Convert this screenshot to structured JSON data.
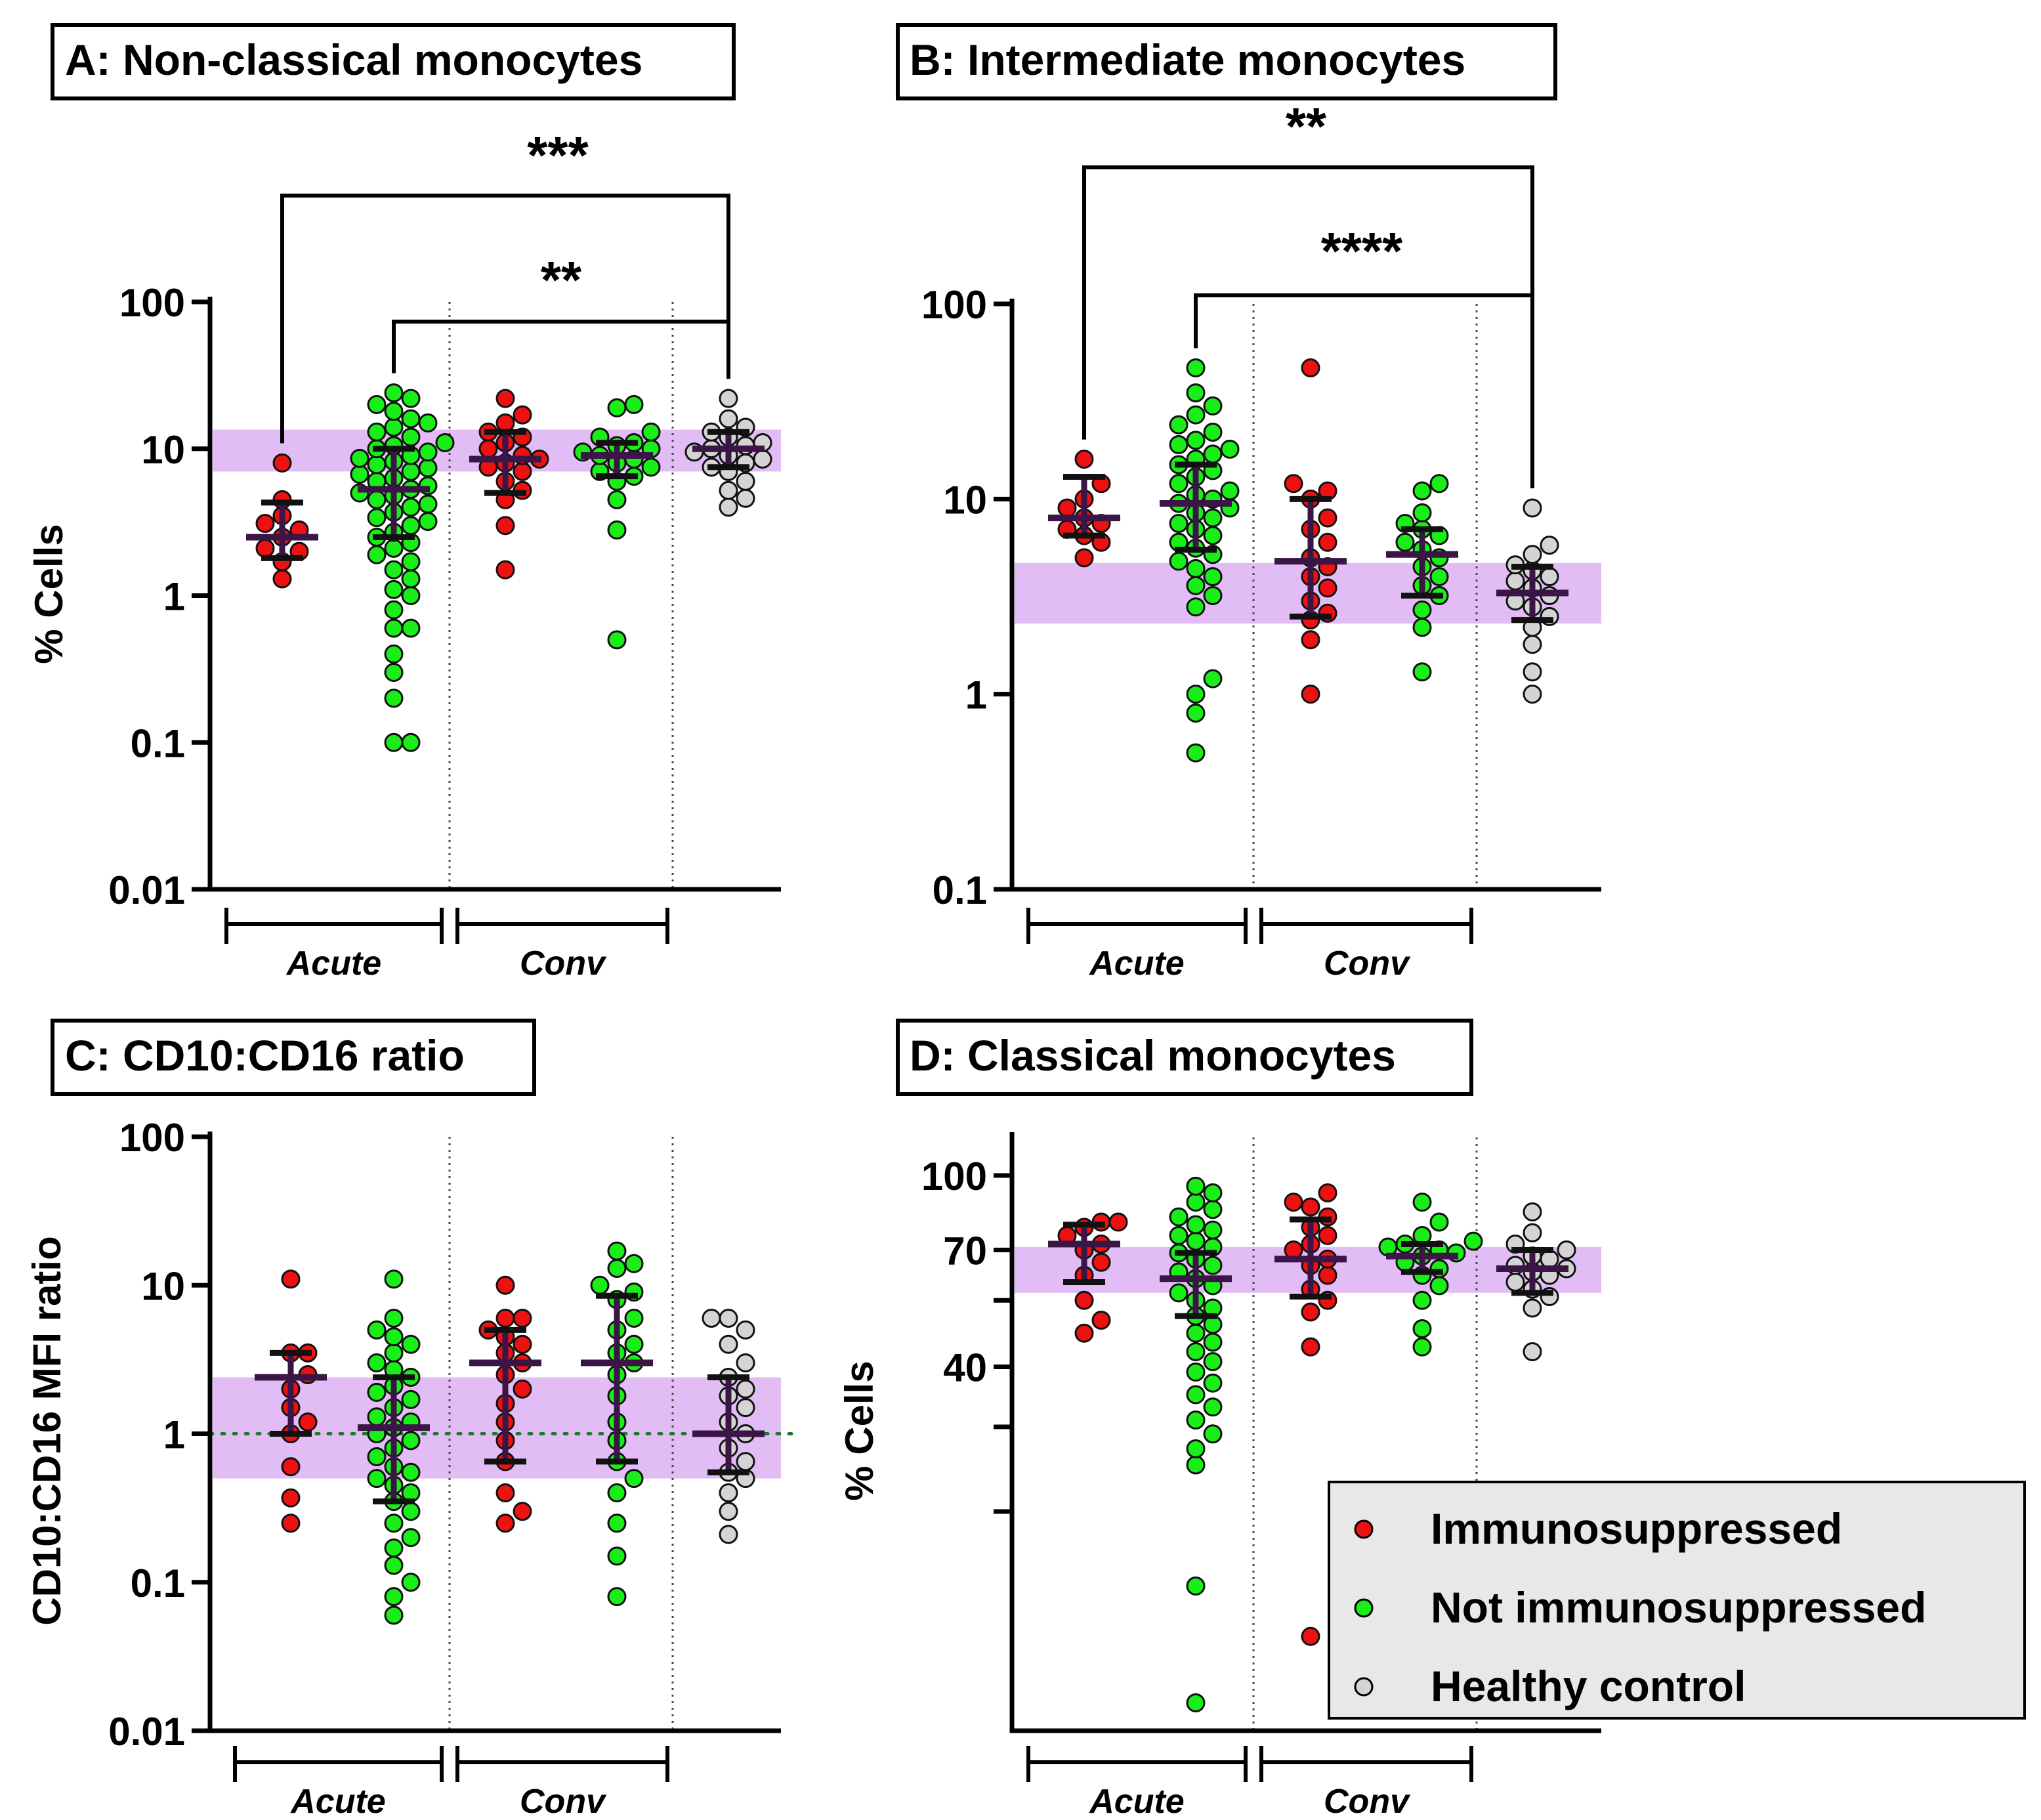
{
  "figure": {
    "colors": {
      "immunosuppressed": "#ee1111",
      "not_immunosuppressed": "#19ee19",
      "healthy_control": "#d4d4d4",
      "reference_band": "#e0b8f4",
      "errorbar": "#3a1545"
    },
    "legend": {
      "items": [
        {
          "label": "Immunosuppressed",
          "color": "#ee1111"
        },
        {
          "label": "Not immunosuppressed",
          "color": "#19ee19"
        },
        {
          "label": "Healthy control",
          "color": "#d4d4d4"
        }
      ]
    }
  },
  "chart_data": [
    {
      "id": "A",
      "type": "scatter",
      "title": "A: Non-classical monocytes",
      "ylabel": "% Cells",
      "yscale": "log",
      "ylim": [
        0.01,
        100
      ],
      "ticks": [
        {
          "value": 100,
          "label": "100"
        },
        {
          "value": 10,
          "label": "10"
        },
        {
          "value": 1,
          "label": "1"
        },
        {
          "value": 0.1,
          "label": "0.1"
        },
        {
          "value": 0.01,
          "label": "0.01"
        }
      ],
      "groups": [
        {
          "label": "Acute",
          "columns": [
            0,
            1
          ]
        },
        {
          "label": "Conv",
          "columns": [
            2,
            3
          ]
        }
      ],
      "band": [
        7,
        13.5
      ],
      "series": [
        {
          "name": "Immunosuppressed",
          "column": 0,
          "center": 2.5,
          "low": 1.8,
          "high": 4.3,
          "values": [
            1.3,
            1.7,
            2.0,
            2.1,
            2.5,
            2.8,
            3.1,
            3.5,
            4.5,
            8.0
          ]
        },
        {
          "name": "Not immunosuppressed",
          "column": 1,
          "center": 5.3,
          "low": 2.5,
          "high": 10,
          "values": [
            0.1,
            0.1,
            0.2,
            0.3,
            0.4,
            0.6,
            0.6,
            0.8,
            1.0,
            1.1,
            1.3,
            1.5,
            1.7,
            1.9,
            2.1,
            2.3,
            2.5,
            2.7,
            3.0,
            3.2,
            3.4,
            3.7,
            4.0,
            4.2,
            4.5,
            4.8,
            5.0,
            5.3,
            5.6,
            6.0,
            6.3,
            6.7,
            7.0,
            7.4,
            7.8,
            8.2,
            8.6,
            9.0,
            9.5,
            10,
            10.5,
            11,
            12,
            13,
            14,
            15,
            16,
            18,
            20,
            22,
            24
          ]
        },
        {
          "name": "Immunosuppressed",
          "column": 2,
          "center": 8.5,
          "low": 5.0,
          "high": 13,
          "values": [
            1.5,
            3.0,
            4.5,
            5.2,
            6.0,
            7.0,
            7.5,
            8.0,
            8.5,
            9.0,
            10,
            11,
            12,
            13,
            15,
            17,
            22
          ]
        },
        {
          "name": "Not immunosuppressed",
          "column": 3,
          "center": 9.0,
          "low": 6.5,
          "high": 11,
          "values": [
            0.5,
            2.8,
            4.5,
            6.0,
            6.5,
            7.0,
            7.5,
            8.0,
            8.5,
            9.0,
            9.5,
            10,
            10.5,
            11,
            12,
            13,
            19,
            20
          ]
        },
        {
          "name": "Healthy control",
          "column": 4,
          "center": 10,
          "low": 7.5,
          "high": 13,
          "values": [
            4.0,
            4.6,
            5.2,
            6.0,
            7.0,
            7.5,
            8.0,
            8.5,
            9.0,
            9.5,
            10,
            10.5,
            11,
            12,
            13,
            14,
            16,
            22
          ]
        }
      ],
      "significance": [
        {
          "from": 0,
          "to": 4,
          "label": "***"
        },
        {
          "from": 1,
          "to": 4,
          "label": "**"
        }
      ]
    },
    {
      "id": "B",
      "type": "scatter",
      "title": "B: Intermediate monocytes",
      "ylabel": "",
      "yscale": "log",
      "ylim": [
        0.1,
        100
      ],
      "ticks": [
        {
          "value": 100,
          "label": "100"
        },
        {
          "value": 10,
          "label": "10"
        },
        {
          "value": 1,
          "label": "1"
        },
        {
          "value": 0.1,
          "label": "0.1"
        }
      ],
      "groups": [
        {
          "label": "Acute",
          "columns": [
            0,
            1
          ]
        },
        {
          "label": "Conv",
          "columns": [
            2,
            3
          ]
        }
      ],
      "band": [
        2.3,
        4.7
      ],
      "series": [
        {
          "name": "Immunosuppressed",
          "column": 0,
          "center": 8.0,
          "low": 6.5,
          "high": 13,
          "values": [
            5.0,
            6.0,
            6.5,
            7.0,
            7.5,
            8.0,
            9.0,
            10,
            12,
            16
          ]
        },
        {
          "name": "Not immunosuppressed",
          "column": 1,
          "center": 9.5,
          "low": 5.5,
          "high": 15,
          "values": [
            0.5,
            0.8,
            1.0,
            1.2,
            2.8,
            3.2,
            3.6,
            4.0,
            4.4,
            4.8,
            5.2,
            5.6,
            6.0,
            6.5,
            7.0,
            7.5,
            8.0,
            8.5,
            9.0,
            9.5,
            10,
            10.5,
            11,
            12,
            13,
            14,
            15,
            16,
            17,
            18,
            19,
            20,
            22,
            24,
            27,
            30,
            35,
            47
          ]
        },
        {
          "name": "Immunosuppressed",
          "column": 2,
          "center": 4.8,
          "low": 2.5,
          "high": 10,
          "values": [
            1.0,
            1.9,
            2.4,
            2.6,
            3.0,
            3.5,
            4.0,
            4.5,
            5.0,
            6.0,
            7.0,
            8.0,
            10,
            11,
            12,
            47
          ]
        },
        {
          "name": "Not immunosuppressed",
          "column": 3,
          "center": 5.2,
          "low": 3.2,
          "high": 7.0,
          "values": [
            1.3,
            2.2,
            2.7,
            3.2,
            3.6,
            4.0,
            4.5,
            5.0,
            5.5,
            6.0,
            6.5,
            7.0,
            7.5,
            8.5,
            11,
            12
          ]
        },
        {
          "name": "Healthy control",
          "column": 4,
          "center": 3.3,
          "low": 2.4,
          "high": 4.5,
          "values": [
            1.0,
            1.3,
            1.8,
            2.2,
            2.5,
            2.8,
            3.0,
            3.2,
            3.5,
            3.8,
            4.0,
            4.3,
            4.6,
            5.2,
            5.8,
            9.0
          ]
        }
      ],
      "significance": [
        {
          "from": 0,
          "to": 4,
          "label": "**"
        },
        {
          "from": 1,
          "to": 4,
          "label": "****"
        }
      ]
    },
    {
      "id": "C",
      "type": "scatter",
      "title": "C: CD10:CD16 ratio",
      "ylabel": "CD10:CD16 MFI ratio",
      "yscale": "log",
      "ylim": [
        0.01,
        100
      ],
      "ticks": [
        {
          "value": 100,
          "label": "100"
        },
        {
          "value": 10,
          "label": "10"
        },
        {
          "value": 1,
          "label": "1"
        },
        {
          "value": 0.1,
          "label": "0.1"
        },
        {
          "value": 0.01,
          "label": "0.01"
        }
      ],
      "groups": [
        {
          "label": "Acute",
          "columns": [
            0,
            1
          ]
        },
        {
          "label": "Conv",
          "columns": [
            2,
            3
          ]
        }
      ],
      "band": [
        0.5,
        2.4
      ],
      "reference_line": 1,
      "series": [
        {
          "name": "Immunosuppressed",
          "column": 0,
          "center": 2.4,
          "low": 1.0,
          "high": 3.5,
          "values": [
            0.25,
            0.37,
            0.6,
            1.0,
            1.2,
            1.5,
            2.0,
            2.5,
            3.5,
            3.5,
            11
          ]
        },
        {
          "name": "Not immunosuppressed",
          "column": 1,
          "center": 1.1,
          "low": 0.35,
          "high": 2.4,
          "values": [
            0.06,
            0.08,
            0.1,
            0.13,
            0.17,
            0.2,
            0.25,
            0.3,
            0.35,
            0.4,
            0.45,
            0.5,
            0.55,
            0.6,
            0.7,
            0.8,
            0.9,
            1.0,
            1.1,
            1.2,
            1.3,
            1.5,
            1.7,
            1.9,
            2.1,
            2.4,
            2.7,
            3.0,
            3.5,
            4.0,
            4.5,
            5.0,
            6.0,
            11
          ]
        },
        {
          "name": "Immunosuppressed",
          "column": 2,
          "center": 3.0,
          "low": 0.65,
          "high": 5.0,
          "values": [
            0.25,
            0.3,
            0.4,
            0.65,
            0.9,
            1.2,
            1.6,
            2.0,
            2.5,
            3.0,
            3.5,
            4.0,
            4.5,
            5.0,
            6.0,
            6.0,
            10
          ]
        },
        {
          "name": "Not immunosuppressed",
          "column": 3,
          "center": 3.0,
          "low": 0.65,
          "high": 8.5,
          "values": [
            0.08,
            0.15,
            0.25,
            0.4,
            0.5,
            0.65,
            0.9,
            1.2,
            1.8,
            2.5,
            3.0,
            3.5,
            4.0,
            5.0,
            6.0,
            8.0,
            9.0,
            10,
            13,
            14,
            17
          ]
        },
        {
          "name": "Healthy control",
          "column": 4,
          "center": 1.0,
          "low": 0.55,
          "high": 2.4,
          "values": [
            0.21,
            0.3,
            0.4,
            0.5,
            0.55,
            0.65,
            0.8,
            1.0,
            1.2,
            1.5,
            1.8,
            2.0,
            2.4,
            3.0,
            4.0,
            5.0,
            6.0,
            6.0
          ]
        }
      ]
    },
    {
      "id": "D",
      "type": "scatter",
      "title": "D: Classical monocytes",
      "ylabel": "% Cells",
      "yscale": "log",
      "ylim": [
        7,
        120
      ],
      "ticks": [
        {
          "value": 100,
          "label": "100"
        },
        {
          "value": 70,
          "label": "70"
        },
        {
          "value": 55,
          "label": ""
        },
        {
          "value": 40,
          "label": "40"
        },
        {
          "value": 30,
          "label": ""
        },
        {
          "value": 20,
          "label": ""
        }
      ],
      "groups": [
        {
          "label": "Acute",
          "columns": [
            0,
            1
          ]
        },
        {
          "label": "Conv",
          "columns": [
            2,
            3
          ]
        }
      ],
      "band": [
        57,
        71
      ],
      "series": [
        {
          "name": "Immunosuppressed",
          "column": 0,
          "center": 72,
          "low": 60,
          "high": 79,
          "values": [
            47,
            50,
            55,
            62,
            66,
            70,
            72,
            75,
            78,
            80,
            80
          ]
        },
        {
          "name": "Not immunosuppressed",
          "column": 1,
          "center": 61,
          "low": 51,
          "high": 69,
          "values": [
            8,
            14,
            25,
            27,
            29,
            31,
            33,
            35,
            37,
            39,
            41,
            43,
            45,
            47,
            49,
            51,
            53,
            55,
            57,
            59,
            61,
            63,
            65,
            67,
            69,
            71,
            73,
            75,
            77,
            79,
            82,
            85,
            88,
            92,
            95
          ]
        },
        {
          "name": "Immunosuppressed",
          "column": 2,
          "center": 67,
          "low": 56,
          "high": 81,
          "values": [
            11,
            44,
            52,
            55,
            58,
            62,
            65,
            67,
            70,
            72,
            75,
            78,
            82,
            86,
            88,
            92
          ]
        },
        {
          "name": "Not immunosuppressed",
          "column": 3,
          "center": 68,
          "low": 63,
          "high": 72,
          "values": [
            44,
            48,
            55,
            59,
            62,
            64,
            66,
            68,
            69,
            70,
            71,
            72,
            73,
            75,
            80,
            88
          ]
        },
        {
          "name": "Healthy control",
          "column": 4,
          "center": 64,
          "low": 57,
          "high": 70,
          "values": [
            43,
            53,
            56,
            58,
            60,
            62,
            63,
            64,
            65,
            67,
            68,
            70,
            72,
            76,
            84
          ]
        }
      ]
    }
  ]
}
